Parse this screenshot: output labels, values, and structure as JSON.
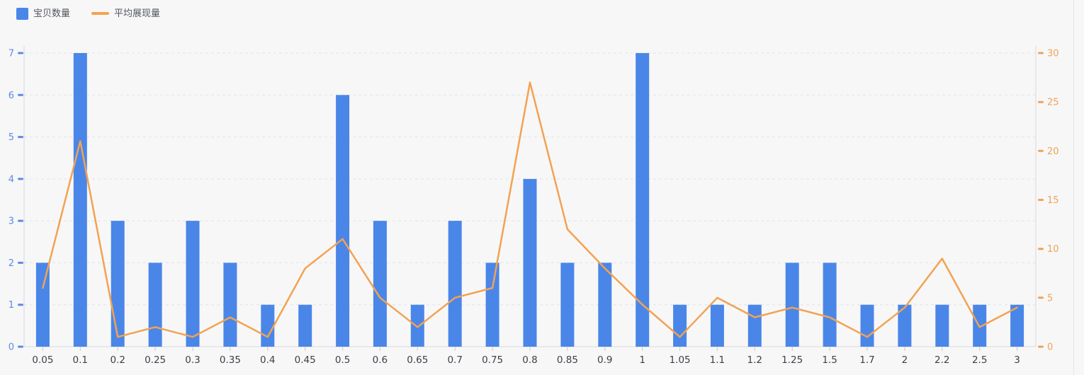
{
  "legend": {
    "items": [
      {
        "label": "宝贝数量",
        "type": "bar",
        "color": "#4A86E8"
      },
      {
        "label": "平均展现量",
        "type": "line",
        "color": "#F3A251"
      }
    ]
  },
  "colors": {
    "background": "#F7F7F8",
    "bar": "#4A86E8",
    "line": "#F3A251",
    "left_axis_label": "#5C8AE6",
    "left_axis_tick": "#5C8AE6",
    "right_axis_label": "#F0A254",
    "right_axis_tick": "#F0A254",
    "x_axis_label": "#3B3F45",
    "grid_line": "#E2E3E6",
    "axis_line": "#D8DADD",
    "x_tick": "#C9CBCE"
  },
  "chart_data": {
    "type": "bar",
    "title": "",
    "xlabel": "",
    "ylabel": "",
    "grid": "dashed-horizontal",
    "legend_position": "top-left",
    "categories": [
      "0.05",
      "0.1",
      "0.2",
      "0.25",
      "0.3",
      "0.35",
      "0.4",
      "0.45",
      "0.5",
      "0.6",
      "0.65",
      "0.7",
      "0.75",
      "0.8",
      "0.85",
      "0.9",
      "1",
      "1.05",
      "1.1",
      "1.2",
      "1.25",
      "1.5",
      "1.7",
      "2",
      "2.2",
      "2.5",
      "3"
    ],
    "series": [
      {
        "name": "宝贝数量",
        "type": "bar",
        "axis": "left",
        "values": [
          2,
          7,
          3,
          2,
          3,
          2,
          1,
          1,
          6,
          3,
          1,
          3,
          2,
          4,
          2,
          2,
          7,
          1,
          1,
          1,
          2,
          2,
          1,
          1,
          1,
          1,
          1
        ]
      },
      {
        "name": "平均展现量",
        "type": "line",
        "axis": "right",
        "values": [
          6,
          21,
          1,
          2,
          1,
          3,
          1,
          8,
          11,
          5,
          2,
          5,
          6,
          27,
          12,
          8,
          4.3,
          1,
          5,
          3,
          4,
          3,
          1,
          4,
          9,
          2,
          4
        ]
      }
    ],
    "left_axis": {
      "min": 0,
      "max": 7,
      "ticks": [
        0,
        1,
        2,
        3,
        4,
        5,
        6,
        7
      ]
    },
    "right_axis": {
      "min": 0,
      "max": 30,
      "ticks": [
        0,
        5,
        10,
        15,
        20,
        25,
        30
      ]
    }
  }
}
